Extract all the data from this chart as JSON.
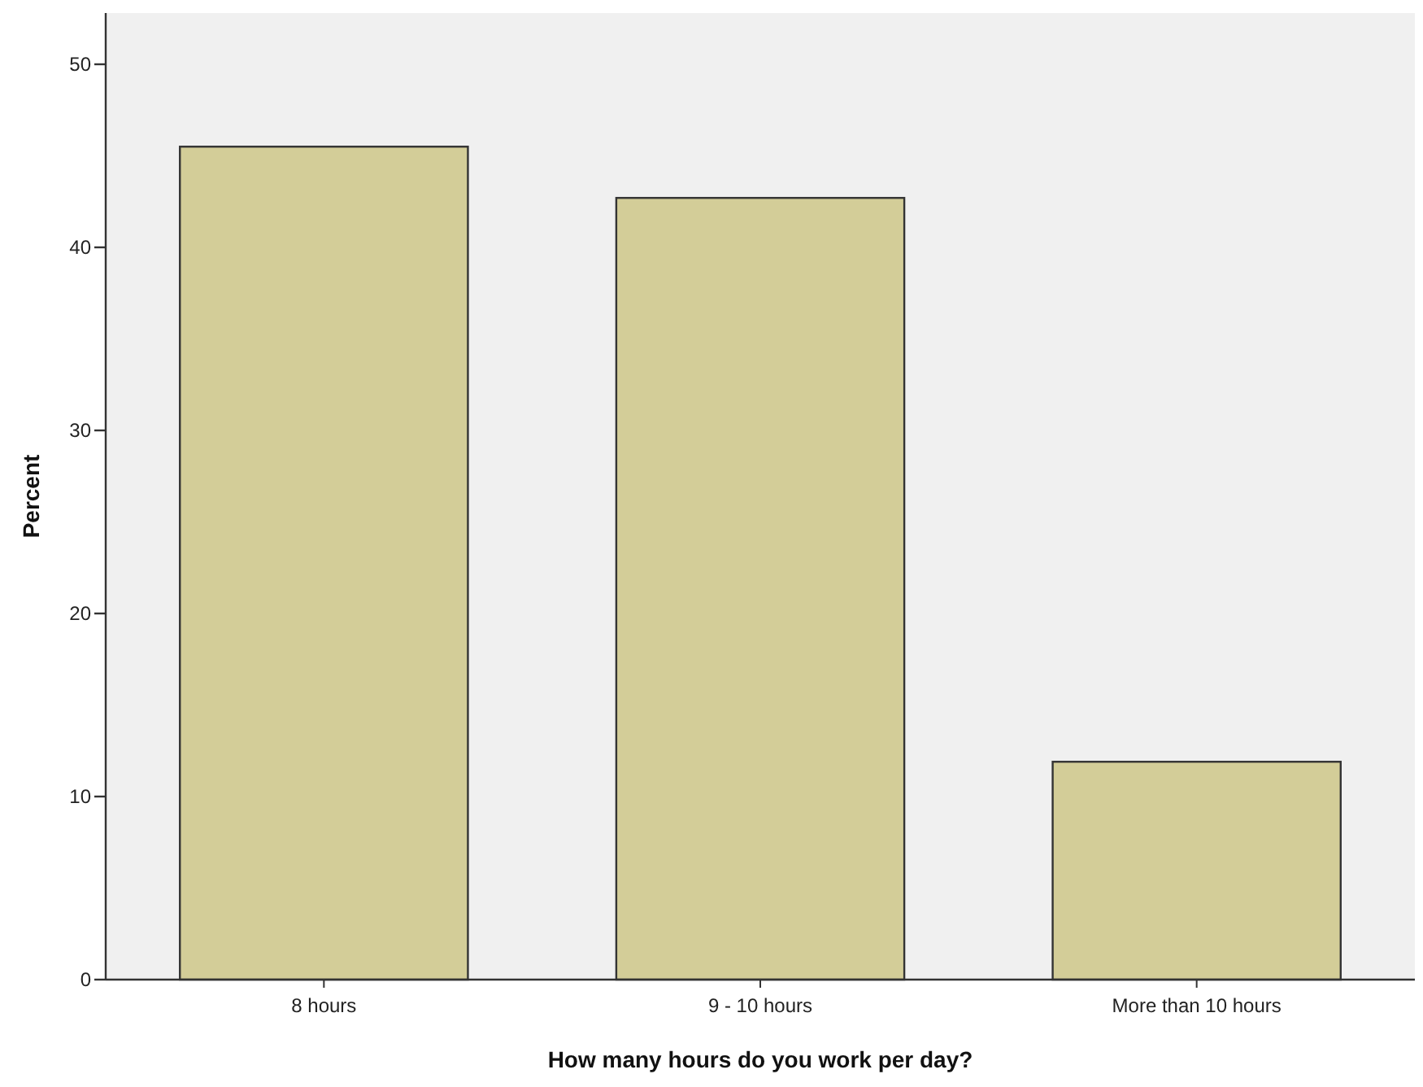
{
  "chart_data": {
    "type": "bar",
    "xlabel": "How many hours do you work per day?",
    "ylabel": "Percent",
    "categories": [
      "8 hours",
      "9 - 10 hours",
      "More than 10 hours"
    ],
    "values": [
      45.5,
      42.7,
      11.9
    ],
    "color": "#d3cd98",
    "ylim": [
      0,
      52.8
    ],
    "yticks": [
      0,
      10,
      20,
      30,
      40,
      50
    ],
    "grid": false
  }
}
